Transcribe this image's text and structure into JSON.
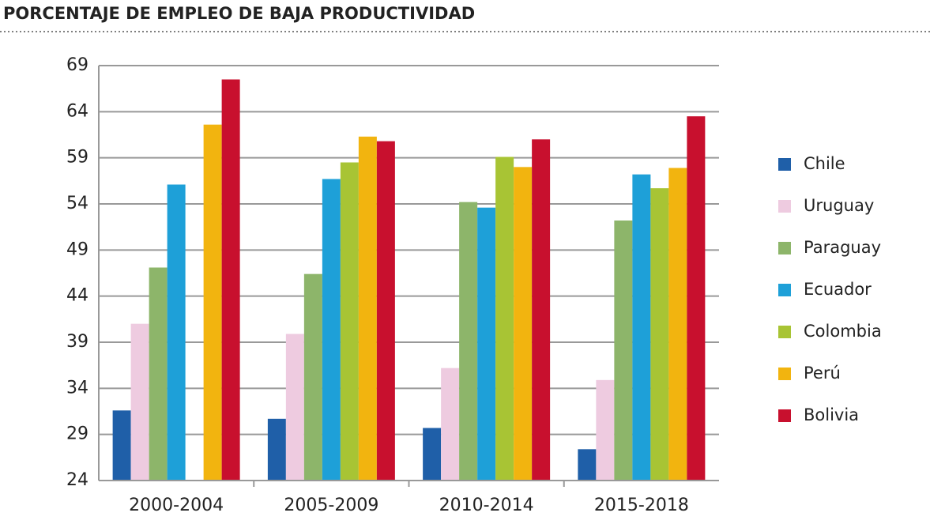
{
  "chart_data": {
    "type": "bar",
    "title": "PORCENTAJE DE EMPLEO DE BAJA PRODUCTIVIDAD",
    "categories": [
      "2000-2004",
      "2005-2009",
      "2010-2014",
      "2015-2018"
    ],
    "series": [
      {
        "name": "Chile",
        "color": "#1f5fa8",
        "values": [
          31.6,
          30.7,
          29.7,
          27.4
        ]
      },
      {
        "name": "Uruguay",
        "color": "#eecbe0",
        "values": [
          41.0,
          39.9,
          36.2,
          34.9
        ]
      },
      {
        "name": "Paraguay",
        "color": "#8db56a",
        "values": [
          47.1,
          46.4,
          54.2,
          52.2
        ]
      },
      {
        "name": "Ecuador",
        "color": "#1ea0d8",
        "values": [
          56.1,
          56.7,
          53.6,
          57.2
        ]
      },
      {
        "name": "Colombia",
        "color": "#a8c434",
        "values": [
          null,
          58.5,
          59.1,
          55.7
        ]
      },
      {
        "name": "Perú",
        "color": "#f2b40f",
        "values": [
          62.6,
          61.3,
          58.0,
          57.9
        ]
      },
      {
        "name": "Bolivia",
        "color": "#c8102e",
        "values": [
          67.5,
          60.8,
          61.0,
          63.5
        ]
      }
    ],
    "ylim": [
      24,
      69
    ],
    "yticks": [
      24,
      29,
      34,
      39,
      44,
      49,
      54,
      59,
      64,
      69
    ],
    "grid": true,
    "legend": "right"
  }
}
